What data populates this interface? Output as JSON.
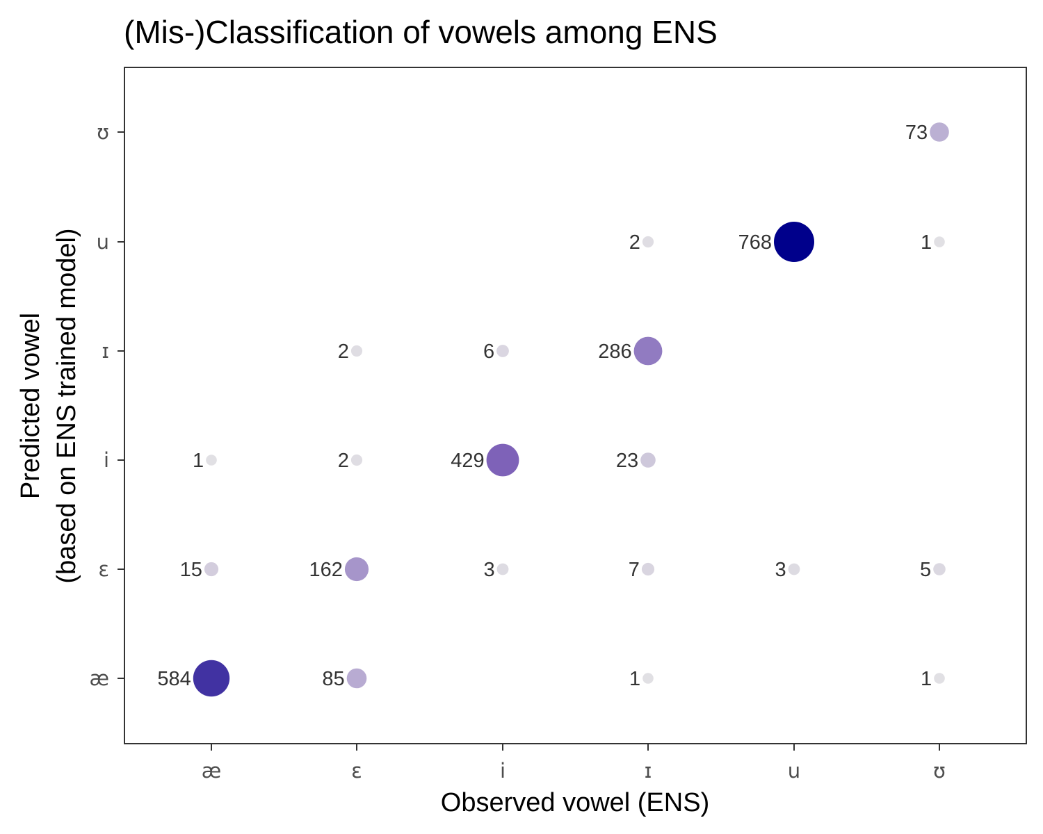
{
  "chart_data": {
    "type": "scatter",
    "title": "(Mis-)Classification of vowels among ENS",
    "xlabel": "Observed vowel (ENS)",
    "ylabel_lines": [
      "Predicted vowel",
      "(based on ENS trained model)"
    ],
    "x_categories": [
      "æ",
      "ɛ",
      "i",
      "ɪ",
      "u",
      "ʊ"
    ],
    "y_categories": [
      "æ",
      "ɛ",
      "i",
      "ɪ",
      "u",
      "ʊ"
    ],
    "grid": false,
    "legend": "none",
    "color_scale": {
      "low": "#e6e6e6",
      "mid": "#7e62b8",
      "high": "#00008b",
      "max": 768
    },
    "points": [
      {
        "x": "æ",
        "y": "æ",
        "count": 584
      },
      {
        "x": "æ",
        "y": "ɛ",
        "count": 15
      },
      {
        "x": "æ",
        "y": "i",
        "count": 1
      },
      {
        "x": "ɛ",
        "y": "æ",
        "count": 85
      },
      {
        "x": "ɛ",
        "y": "ɛ",
        "count": 162
      },
      {
        "x": "ɛ",
        "y": "i",
        "count": 2
      },
      {
        "x": "ɛ",
        "y": "ɪ",
        "count": 2
      },
      {
        "x": "i",
        "y": "ɛ",
        "count": 3
      },
      {
        "x": "i",
        "y": "i",
        "count": 429
      },
      {
        "x": "i",
        "y": "ɪ",
        "count": 6
      },
      {
        "x": "ɪ",
        "y": "æ",
        "count": 1
      },
      {
        "x": "ɪ",
        "y": "ɛ",
        "count": 7
      },
      {
        "x": "ɪ",
        "y": "i",
        "count": 23
      },
      {
        "x": "ɪ",
        "y": "ɪ",
        "count": 286
      },
      {
        "x": "ɪ",
        "y": "u",
        "count": 2
      },
      {
        "x": "u",
        "y": "ɛ",
        "count": 3
      },
      {
        "x": "u",
        "y": "u",
        "count": 768
      },
      {
        "x": "ʊ",
        "y": "æ",
        "count": 1
      },
      {
        "x": "ʊ",
        "y": "ɛ",
        "count": 5
      },
      {
        "x": "ʊ",
        "y": "u",
        "count": 1
      },
      {
        "x": "ʊ",
        "y": "ʊ",
        "count": 73
      }
    ]
  }
}
